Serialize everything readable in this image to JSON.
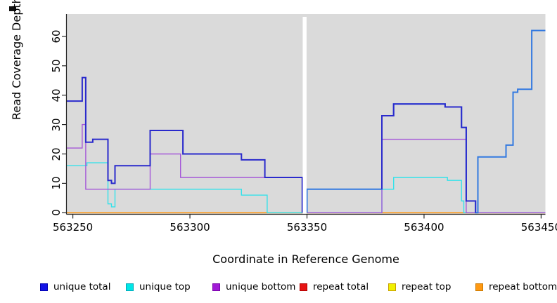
{
  "figure": {
    "y_axis": {
      "label": "Read Coverage Depth",
      "tick_values": [
        0,
        10,
        20,
        30,
        40,
        50,
        60
      ]
    },
    "x_axis": {
      "label": "Coordinate in Reference Genome",
      "tick_values": [
        563250,
        563300,
        563350,
        563400,
        563450
      ]
    },
    "legend": {
      "items": [
        {
          "label": "unique total",
          "fill": "#1414E6",
          "border": "#0000B0"
        },
        {
          "label": "unique top",
          "fill": "#00E6E6",
          "border": "#00A8B8"
        },
        {
          "label": "unique bottom",
          "fill": "#A11AD6",
          "border": "#7700A8"
        },
        {
          "label": "repeat total",
          "fill": "#E61414",
          "border": "#B00000"
        },
        {
          "label": "repeat top",
          "fill": "#F0F000",
          "border": "#C8A000"
        },
        {
          "label": "repeat bottom",
          "fill": "#FF9912",
          "border": "#C87800"
        }
      ]
    },
    "plot_background": "#DADADA",
    "gap_color": "#FFFFFF",
    "axis_color": "#262626"
  },
  "chart_data": {
    "type": "line",
    "style": "step",
    "title": "",
    "xlabel": "Coordinate in Reference Genome",
    "ylabel": "Read Coverage Depth",
    "x_range": [
      563247,
      563452
    ],
    "y_range": [
      0,
      63
    ],
    "x_ticks": [
      563250,
      563300,
      563350,
      563400,
      563450
    ],
    "y_ticks": [
      0,
      10,
      20,
      30,
      40,
      50,
      60
    ],
    "no_data_gap": [
      563348,
      563350
    ],
    "grid": false,
    "legend_position": "bottom",
    "series": [
      {
        "name": "repeat top",
        "color": "#F0F000",
        "width": 1.4,
        "paths": [
          {
            "steps": [
              [
                563247,
                0
              ]
            ],
            "end": 563452
          }
        ]
      },
      {
        "name": "repeat bottom",
        "color": "#FF9A1A",
        "width": 1.6,
        "paths": [
          {
            "steps": [
              [
                563247,
                0
              ]
            ],
            "end": 563348
          },
          {
            "steps": [
              [
                563350,
                0
              ]
            ],
            "end": 563452
          }
        ]
      },
      {
        "name": "repeat total",
        "color": "#D7608F",
        "width": 1.5,
        "paths": [
          {
            "steps": [
              [
                563350,
                0
              ]
            ],
            "end": 563382
          },
          {
            "steps": [
              [
                563418,
                0
              ]
            ],
            "end": 563452
          }
        ]
      },
      {
        "name": "unique top",
        "color": "#33E2EA",
        "width": 1.4,
        "paths": [
          {
            "steps": [
              [
                563247,
                16
              ],
              [
                563256,
                17
              ],
              [
                563265,
                3
              ],
              [
                563266.5,
                2
              ],
              [
                563268,
                8
              ],
              [
                563322,
                6
              ],
              [
                563333,
                0
              ]
            ],
            "end": 563348
          },
          {
            "steps": [
              [
                563350,
                0
              ],
              [
                563382,
                8
              ],
              [
                563387,
                12
              ],
              [
                563410,
                11
              ],
              [
                563416,
                4
              ],
              [
                563417,
                0
              ]
            ],
            "end": 563452
          }
        ]
      },
      {
        "name": "unique bottom",
        "color": "#A558D8",
        "width": 1.4,
        "paths": [
          {
            "steps": [
              [
                563247,
                22
              ],
              [
                563254,
                30
              ],
              [
                563255.5,
                8
              ],
              [
                563283,
                20
              ],
              [
                563296,
                12
              ],
              [
                563348,
                0
              ]
            ],
            "end": 563348
          },
          {
            "steps": [
              [
                563350,
                0
              ],
              [
                563382,
                25
              ],
              [
                563418,
                0
              ]
            ],
            "end": 563452
          }
        ]
      },
      {
        "name": "total (light blue, unlabeled in legend)",
        "color": "#3379E0",
        "width": 2,
        "paths": [
          {
            "steps": [
              [
                563350,
                0
              ],
              [
                563350,
                8
              ],
              [
                563382,
                33
              ],
              [
                563387,
                37
              ],
              [
                563409,
                36
              ],
              [
                563416,
                29
              ],
              [
                563418,
                4
              ],
              [
                563422,
                0
              ],
              [
                563423,
                19
              ],
              [
                563435,
                23
              ],
              [
                563438,
                41
              ],
              [
                563440,
                42
              ],
              [
                563446,
                62
              ]
            ],
            "end": 563452
          }
        ]
      },
      {
        "name": "unique total",
        "color": "#2A2ACC",
        "width": 2,
        "paths": [
          {
            "steps": [
              [
                563247,
                38
              ],
              [
                563254,
                46
              ],
              [
                563255.5,
                24
              ],
              [
                563258.5,
                25
              ],
              [
                563265,
                11
              ],
              [
                563266.5,
                10
              ],
              [
                563268,
                16
              ],
              [
                563283,
                28
              ],
              [
                563297,
                20
              ],
              [
                563322,
                18
              ],
              [
                563332,
                12
              ],
              [
                563348,
                0
              ]
            ],
            "end": 563348
          },
          {
            "steps": [
              [
                563382,
                8
              ],
              [
                563382,
                33
              ],
              [
                563387,
                37
              ],
              [
                563409,
                36
              ],
              [
                563416,
                29
              ],
              [
                563418,
                4
              ],
              [
                563422,
                0
              ]
            ],
            "end": 563422
          }
        ]
      }
    ]
  }
}
